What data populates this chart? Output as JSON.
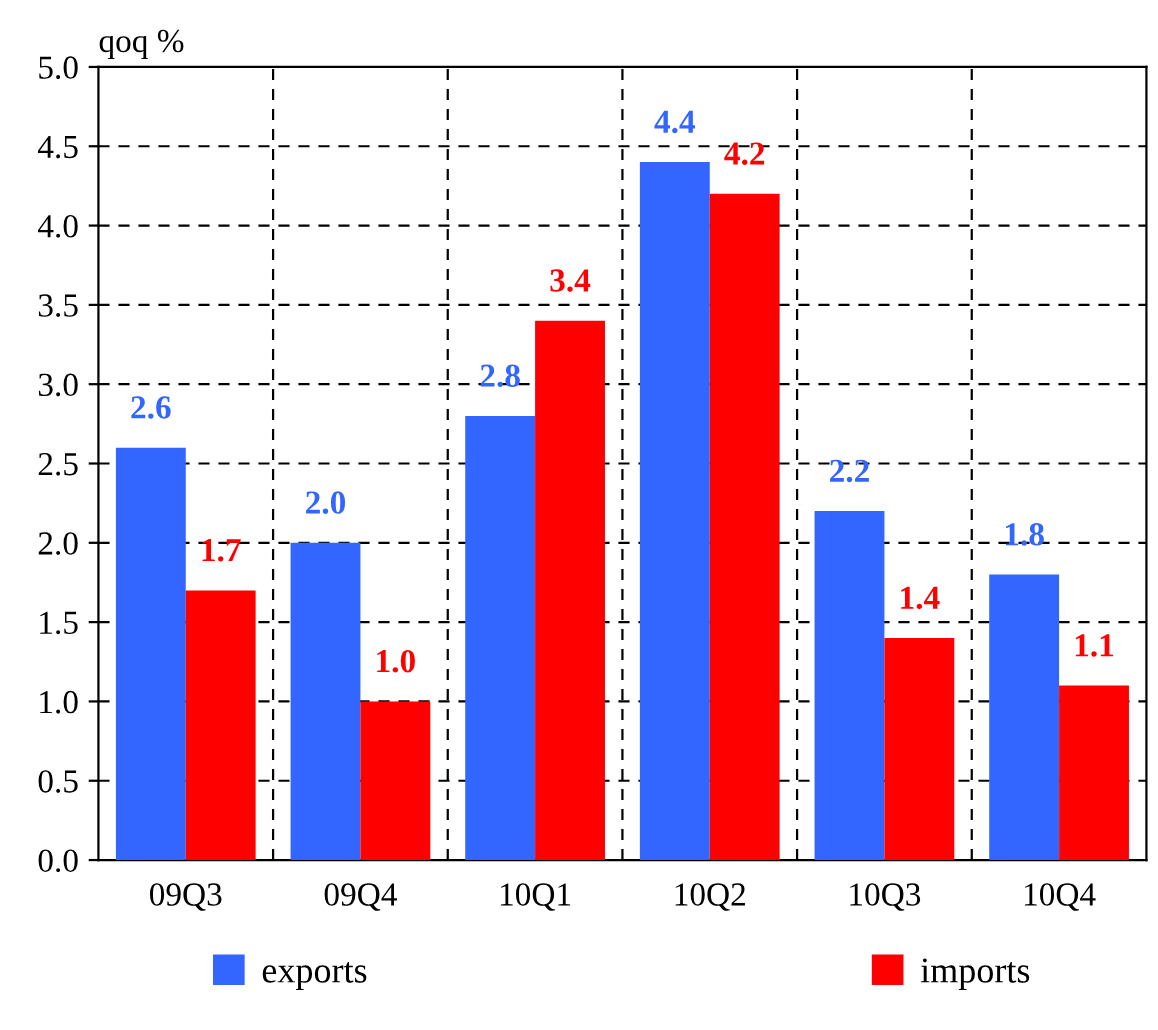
{
  "chart_data": {
    "type": "bar",
    "ylabel": "qoq %",
    "categories": [
      "09Q3",
      "09Q4",
      "10Q1",
      "10Q2",
      "10Q3",
      "10Q4"
    ],
    "series": [
      {
        "name": "exports",
        "color": "#3366ff",
        "values": [
          2.6,
          2.0,
          2.8,
          4.4,
          2.2,
          1.8
        ],
        "value_labels": [
          "2.6",
          "2.0",
          "2.8",
          "4.4",
          "2.2",
          "1.8"
        ]
      },
      {
        "name": "imports",
        "color": "#ff0000",
        "values": [
          1.7,
          1.0,
          3.4,
          4.2,
          1.4,
          1.1
        ],
        "value_labels": [
          "1.7",
          "1.0",
          "3.4",
          "4.2",
          "1.4",
          "1.1"
        ]
      }
    ],
    "ylim": [
      0,
      5
    ],
    "yticks": [
      {
        "value": 0,
        "label": "0.0"
      },
      {
        "value": 0.5,
        "label": "0.5"
      },
      {
        "value": 1,
        "label": "1.0"
      },
      {
        "value": 1.5,
        "label": "1.5"
      },
      {
        "value": 2,
        "label": "2.0"
      },
      {
        "value": 2.5,
        "label": "2.5"
      },
      {
        "value": 3,
        "label": "3.0"
      },
      {
        "value": 3.5,
        "label": "3.5"
      },
      {
        "value": 4,
        "label": "4.0"
      },
      {
        "value": 4.5,
        "label": "4.5"
      },
      {
        "value": 5,
        "label": "5.0"
      }
    ],
    "grid": true,
    "legend": "bottom"
  }
}
